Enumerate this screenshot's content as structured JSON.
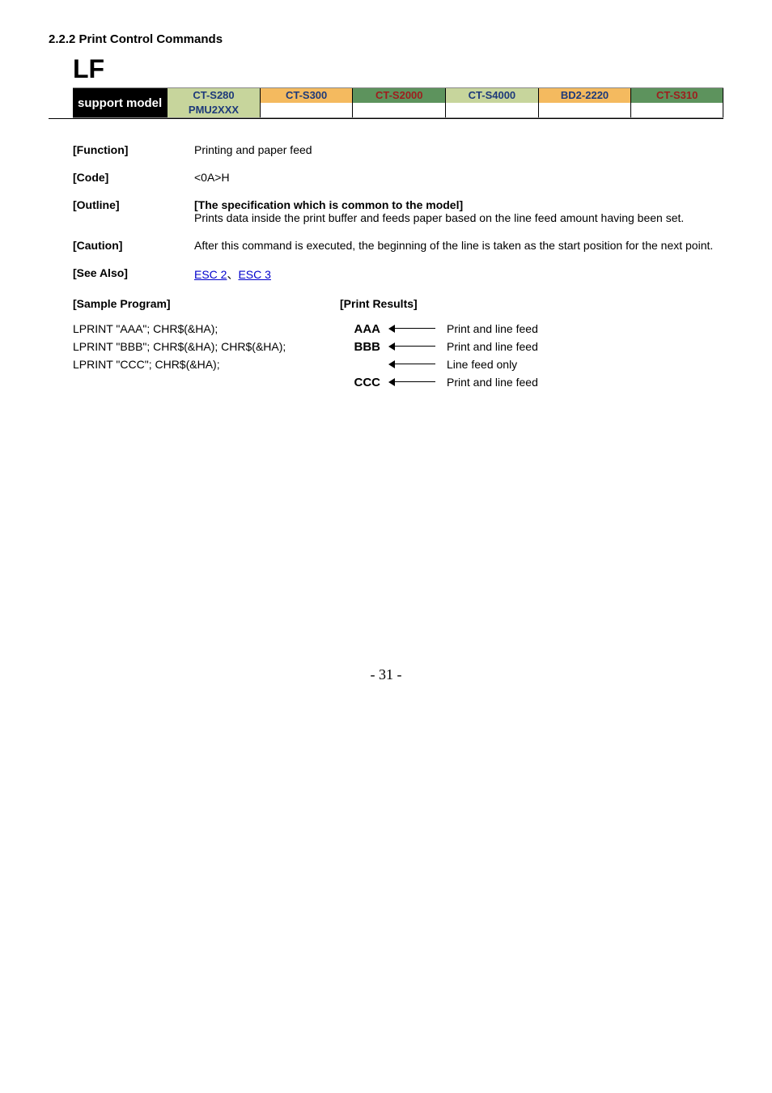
{
  "section_heading": "2.2.2 Print Control Commands",
  "command": "LF",
  "support": {
    "label": "support model",
    "models": [
      {
        "name": "CT-S280",
        "bg": "#c7d59c",
        "fg": "#1e3a7a"
      },
      {
        "name": "CT-S300",
        "bg": "#f4ba5f",
        "fg": "#1e3a7a"
      },
      {
        "name": "CT-S2000",
        "bg": "#5d935d",
        "fg": "#9e1d1d"
      },
      {
        "name": "CT-S4000",
        "bg": "#c7d59c",
        "fg": "#1e3a7a"
      },
      {
        "name": "BD2-2220",
        "bg": "#f4ba5f",
        "fg": "#1e3a7a"
      },
      {
        "name": "CT-S310",
        "bg": "#5d935d",
        "fg": "#9e1d1d"
      }
    ],
    "row2": [
      {
        "name": "PMU2XXX",
        "bg": "#c7d59c",
        "fg": "#1e3a7a"
      },
      {
        "name": "",
        "bg": "#ffffff",
        "fg": "#000"
      },
      {
        "name": "",
        "bg": "#ffffff",
        "fg": "#000"
      },
      {
        "name": "",
        "bg": "#ffffff",
        "fg": "#000"
      },
      {
        "name": "",
        "bg": "#ffffff",
        "fg": "#000"
      },
      {
        "name": "",
        "bg": "#ffffff",
        "fg": "#000"
      }
    ]
  },
  "function": {
    "label": "[Function]",
    "value": "Printing and paper feed"
  },
  "code": {
    "label": "[Code]",
    "value": "<0A>H"
  },
  "outline": {
    "label": "[Outline]",
    "title": "[The specification which is common to the model]",
    "body": "Prints data inside the print buffer and feeds paper based on the line feed amount having been set."
  },
  "caution": {
    "label": "[Caution]",
    "body": "After this command is executed, the beginning of the line is taken as the start position for the next point."
  },
  "see_also": {
    "label": "[See Also]",
    "link1": "ESC 2",
    "sep": "、",
    "link2": "ESC 3"
  },
  "sample_label": "[Sample Program]",
  "results_label": "[Print Results]",
  "code_lines": [
    "LPRINT \"AAA\"; CHR$(&HA);",
    "LPRINT \"BBB\"; CHR$(&HA); CHR$(&HA);",
    "LPRINT \"CCC\"; CHR$(&HA);"
  ],
  "results": [
    {
      "txt": "AAA",
      "desc": "Print and line feed"
    },
    {
      "txt": "BBB",
      "desc": "Print and line feed"
    },
    {
      "txt": "",
      "desc": "Line feed only"
    },
    {
      "txt": "CCC",
      "desc": "Print and line feed"
    }
  ],
  "page_number": "- 31 -"
}
